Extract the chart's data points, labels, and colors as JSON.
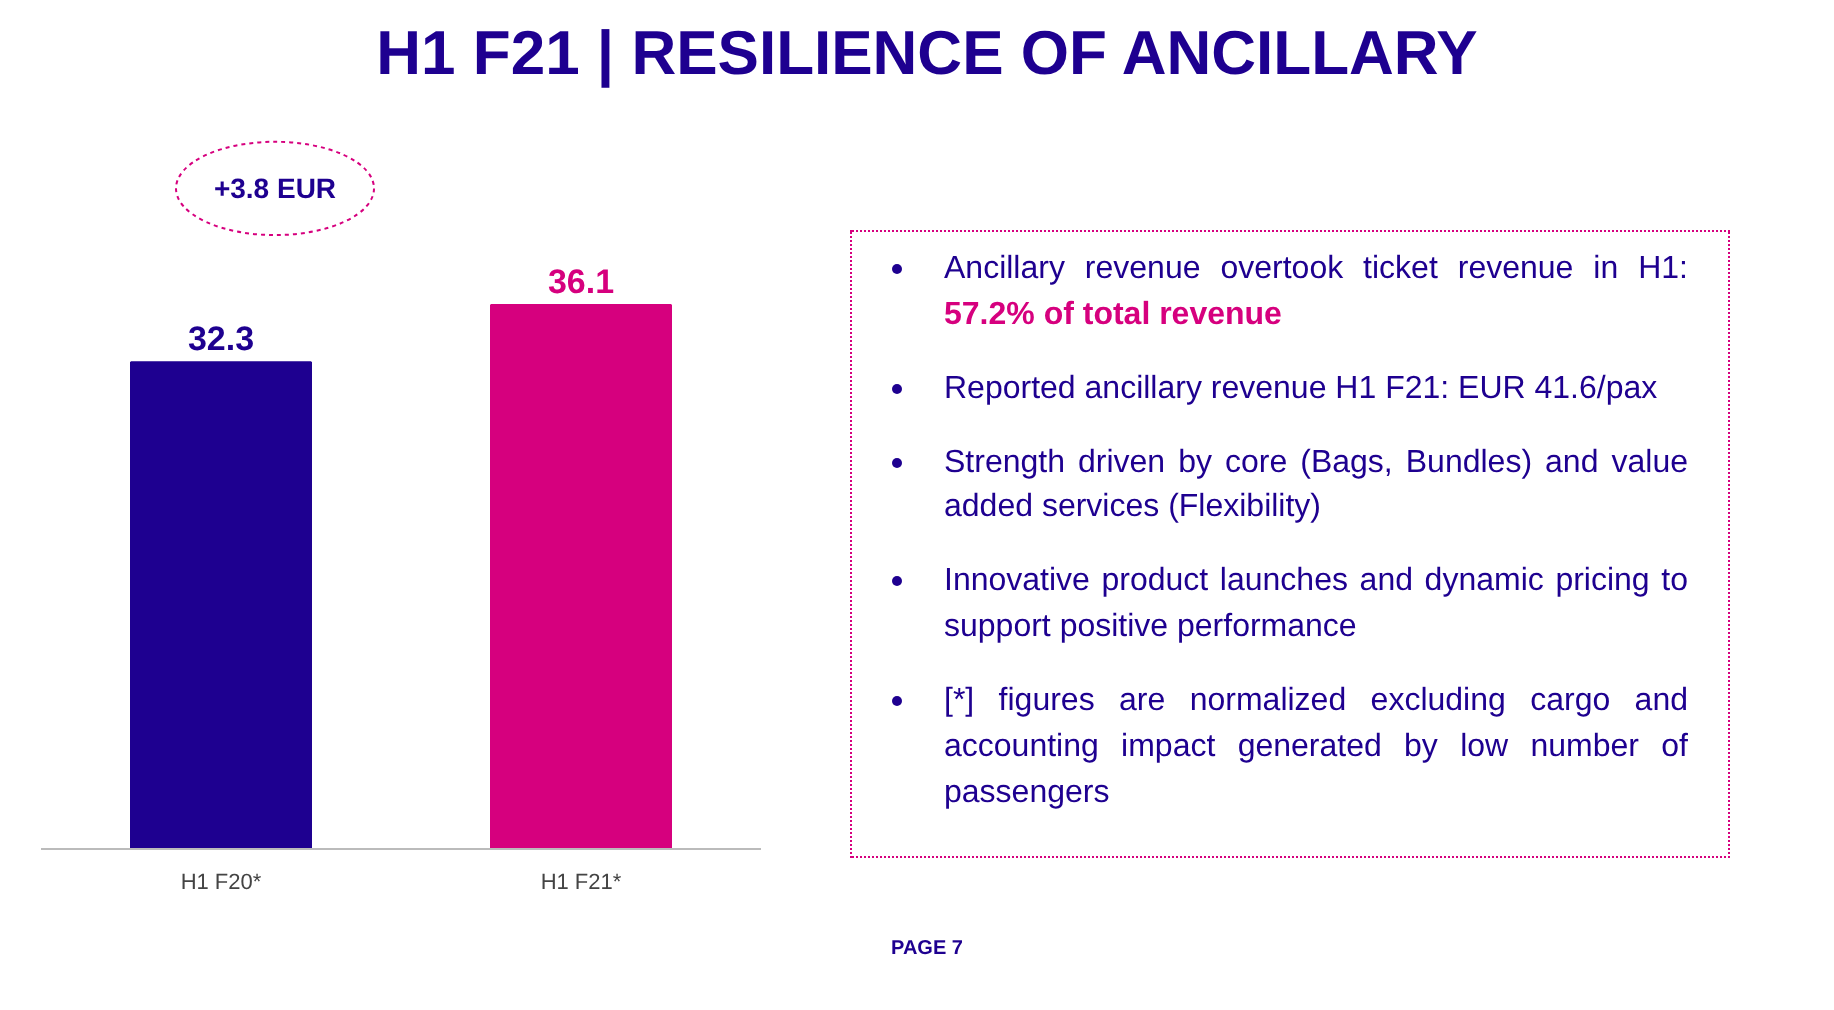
{
  "chart_data": {
    "type": "bar",
    "title": "H1 F21 | RESILIENCE OF ANCILLARY",
    "categories": [
      "H1 F20*",
      "H1 F21*"
    ],
    "values": [
      32.3,
      36.1
    ],
    "colors": [
      "#1e0090",
      "#d6007e"
    ],
    "data_labels": true,
    "grid": false,
    "annotations": [
      "+3.8 EUR",
      "Ancillary revenue overtook ticket revenue in H1:",
      "57.2% of total revenue",
      "Reported ancillary revenue H1 F21: EUR 41.6/pax",
      "Strength driven by core (Bags, Bundles) and value added services (Flexibility)",
      "Innovative product launches and dynamic pricing to support positive performance",
      "[*] figures are normalized excluding cargo and accounting impact generated by low number of passengers",
      "PAGE 7"
    ]
  }
}
